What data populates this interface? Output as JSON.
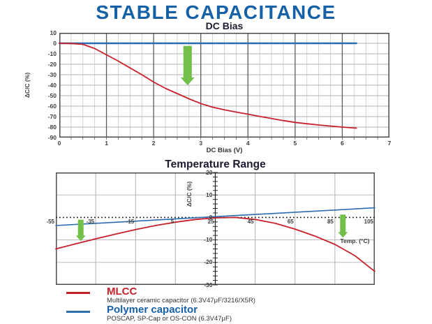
{
  "page": {
    "title": "STABLE CAPACITANCE",
    "title_color": "#1660a8",
    "background": "#ffffff"
  },
  "chart_data": [
    {
      "id": "dc-bias",
      "type": "line",
      "title": "DC Bias",
      "xlabel": "DC Bias (V)",
      "ylabel": "ΔC/C (%)",
      "xlim": [
        0,
        7
      ],
      "ylim": [
        -90,
        10
      ],
      "xticks": [
        0,
        1,
        2,
        3,
        4,
        5,
        6,
        7
      ],
      "yticks": [
        10,
        0,
        -10,
        -20,
        -30,
        -40,
        -50,
        -60,
        -70,
        -80,
        -90
      ],
      "minor_x_step": 0.25,
      "grid": true,
      "legend_position": "none",
      "xlabel_anchor": "below",
      "series": [
        {
          "name": "Polymer capacitor",
          "color": "#2a6cae",
          "width": 2.4,
          "x": [
            0,
            6.3
          ],
          "y": [
            0,
            0
          ]
        },
        {
          "name": "MLCC",
          "color": "#c8202a",
          "width": 1.8,
          "x": [
            0,
            0.25,
            0.5,
            0.75,
            1,
            1.25,
            1.5,
            1.75,
            2,
            2.25,
            2.5,
            2.75,
            3,
            3.25,
            3.5,
            3.75,
            4,
            4.25,
            4.5,
            4.75,
            5,
            5.25,
            5.5,
            5.75,
            6,
            6.3
          ],
          "y": [
            0,
            -0.2,
            -1,
            -5,
            -11,
            -17,
            -23.5,
            -30,
            -37,
            -43,
            -48,
            -53,
            -57.5,
            -61,
            -63.5,
            -65.7,
            -67.7,
            -69.8,
            -71.8,
            -73.8,
            -75.5,
            -76.8,
            -78,
            -79,
            -80,
            -81
          ]
        }
      ],
      "arrows": [
        {
          "x": 2.72,
          "from": -2.5,
          "to": -40,
          "shaft": 12,
          "head": 20,
          "head_h": 11,
          "color": "#72bf4a"
        }
      ]
    },
    {
      "id": "temperature",
      "type": "line",
      "title": "Temperature Range",
      "xlabel": "Temp. (°C)",
      "ylabel": "ΔC/C (%)",
      "xlim": [
        -55,
        105
      ],
      "ylim": [
        -30,
        20
      ],
      "xticks": [
        -55,
        -35,
        -15,
        5,
        25,
        45,
        65,
        85,
        105
      ],
      "yticks": [
        20,
        10,
        0,
        -10,
        -20,
        -30
      ],
      "center_axis_x": 25,
      "center_tick_step": 2,
      "zero_axis_dotted": true,
      "grid": true,
      "legend_position": "none",
      "xlabel_anchor": "data",
      "xlabel_x": 95,
      "xlabel_y": -10.5,
      "x_label_pos": "axis",
      "series": [
        {
          "name": "Polymer capacitor",
          "color": "#2a6cae",
          "width": 1.6,
          "x": [
            -55,
            105
          ],
          "y": [
            -3.6,
            4.3
          ]
        },
        {
          "name": "MLCC",
          "color": "#c8202a",
          "width": 1.8,
          "x": [
            -55,
            -45,
            -35,
            -25,
            -15,
            -5,
            5,
            15,
            25,
            35,
            45,
            55,
            65,
            75,
            85,
            95,
            105
          ],
          "y": [
            -14,
            -11.7,
            -9.5,
            -7.4,
            -5.4,
            -3.6,
            -2.1,
            -0.9,
            -0.2,
            0,
            -0.9,
            -2.6,
            -5.2,
            -8.3,
            -12,
            -17,
            -24
          ]
        }
      ],
      "arrows": [
        {
          "x": -42.5,
          "from": -1,
          "to": -10.5,
          "shaft": 8,
          "head": 14,
          "head_h": 8,
          "color": "#72bf4a"
        },
        {
          "x": 89,
          "from": 1.3,
          "to": -9,
          "shaft": 8,
          "head": 14,
          "head_h": 8,
          "color": "#72bf4a"
        }
      ]
    }
  ],
  "legend": {
    "items": [
      {
        "name": "MLCC",
        "color": "#c8202a",
        "desc": "Multilayer ceramic capacitor (6.3V47μF/3216/X5R)"
      },
      {
        "name": "Polymer capacitor",
        "color": "#1660a8",
        "line_color": "#2a6cae",
        "desc": "POSCAP, SP-Cap or OS-CON (6.3V47μF)"
      }
    ]
  }
}
